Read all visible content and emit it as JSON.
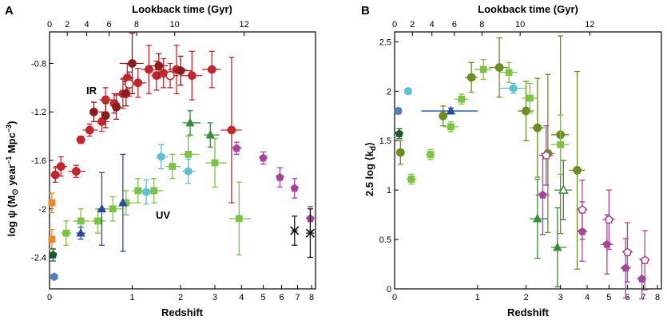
{
  "chart_data": [
    {
      "panel_label": "A",
      "type": "scatter",
      "xlabel": "Redshift",
      "x2label": "Lookback time (Gyr)",
      "ylabel_parts": {
        "pre": "log ψ (M",
        "sub": "⊙",
        "mid": " year",
        "sup1": "−1",
        "post": " Mpc",
        "sup2": "−3",
        "close": ")"
      },
      "xscale": "log(1+z)",
      "xlim": [
        0,
        8.3
      ],
      "ylim": [
        -2.66,
        -0.54
      ],
      "x_ticks": [
        0,
        1,
        2,
        3,
        4,
        5,
        6,
        7,
        8
      ],
      "y_ticks": [
        -2.4,
        -2.0,
        -1.6,
        -1.2,
        -0.8
      ],
      "y_tick_labels": [
        "-2.4",
        "-2",
        "-1.6",
        "-1.2",
        "-0.8"
      ],
      "lookback_ticks": [
        0,
        2,
        4,
        6,
        8,
        10,
        12
      ],
      "annotations": [
        "IR",
        "UV"
      ],
      "series": [
        {
          "name": "IR",
          "color": "#c0282e",
          "marker": "circle",
          "points": [
            [
              0.05,
              -1.72,
              0.04,
              0.04,
              0.06
            ],
            [
              0.1,
              -1.65,
              0.06,
              0.06,
              0.08
            ],
            [
              0.25,
              -1.69,
              0.08,
              0.1,
              0.05
            ],
            [
              0.3,
              -1.43,
              0.05,
              0.05,
              0.03
            ],
            [
              0.4,
              -1.35,
              0.08,
              0.1,
              0.05
            ],
            [
              0.55,
              -1.28,
              0.08,
              0.1,
              0.08
            ],
            [
              0.6,
              -1.1,
              0.08,
              0.1,
              0.1
            ],
            [
              0.72,
              -1.13,
              0.06,
              0.08,
              0.08
            ],
            [
              0.85,
              -1.05,
              0.1,
              0.1,
              0.12
            ],
            [
              0.92,
              -0.92,
              0.1,
              0.1,
              0.12
            ],
            [
              1.1,
              -0.96,
              0.15,
              0.15,
              0.12
            ],
            [
              1.3,
              -0.85,
              0.15,
              0.2,
              0.2
            ],
            [
              1.45,
              -0.9,
              0.1,
              0.15,
              0.12
            ],
            [
              1.6,
              -0.88,
              0.15,
              0.2,
              0.12
            ],
            [
              1.9,
              -0.85,
              0.2,
              0.25,
              0.2
            ],
            [
              2.3,
              -0.9,
              0.3,
              0.3,
              0.2
            ],
            [
              2.9,
              -0.85,
              0.3,
              0.3,
              0.15
            ],
            [
              3.6,
              -1.35,
              0.4,
              0.4,
              0.6
            ]
          ]
        },
        {
          "name": "IR-dark",
          "color": "#8b1d1d",
          "marker": "circle",
          "points": [
            [
              0.45,
              -1.2,
              0.05,
              0.05,
              0.08
            ],
            [
              0.6,
              -1.23,
              0.05,
              0.05,
              0.1
            ],
            [
              0.75,
              -1.16,
              0.05,
              0.08,
              0.1
            ],
            [
              0.9,
              -1.05,
              0.1,
              0.15,
              0.1
            ],
            [
              1.0,
              -0.8,
              0.2,
              0.2,
              0.25
            ],
            [
              1.5,
              -0.82,
              0.2,
              0.2,
              0.1
            ],
            [
              2.0,
              -0.86,
              0.2,
              0.3,
              0.12
            ]
          ]
        },
        {
          "name": "IR-open",
          "color": "#c0282e",
          "marker": "open-circle",
          "points": [
            [
              0.95,
              -0.97,
              0.1,
              0.15,
              0.1
            ],
            [
              1.75,
              -0.9,
              0.2,
              0.2,
              0.1
            ]
          ]
        },
        {
          "name": "UV-light-green",
          "color": "#7dc242",
          "marker": "square",
          "points": [
            [
              0.15,
              -2.2,
              0.05,
              0.05,
              0.1
            ],
            [
              0.3,
              -2.1,
              0.08,
              0.1,
              0.1
            ],
            [
              0.5,
              -2.1,
              0.08,
              0.1,
              0.1
            ],
            [
              0.7,
              -2.0,
              0.1,
              0.15,
              0.1
            ],
            [
              0.9,
              -1.95,
              0.1,
              0.15,
              0.1
            ],
            [
              1.1,
              -1.85,
              0.1,
              0.15,
              0.1
            ],
            [
              1.4,
              -1.85,
              0.15,
              0.2,
              0.1
            ],
            [
              1.8,
              -1.65,
              0.15,
              0.2,
              0.1
            ],
            [
              2.2,
              -1.55,
              0.2,
              0.3,
              0.15
            ],
            [
              3.0,
              -1.62,
              0.3,
              0.4,
              0.2
            ],
            [
              3.9,
              -2.08,
              0.4,
              0.5,
              0.3
            ]
          ]
        },
        {
          "name": "UV-dark-green",
          "color": "#3a8a3a",
          "marker": "triangle",
          "points": [
            [
              2.25,
              -1.29,
              0.2,
              0.3,
              0.1
            ],
            [
              2.85,
              -1.39,
              0.2,
              0.3,
              0.1
            ]
          ]
        },
        {
          "name": "UV-cyan",
          "color": "#5fc0d0",
          "marker": "hexagon",
          "points": [
            [
              1.25,
              -1.86,
              0.15,
              0.2,
              0.1
            ],
            [
              1.55,
              -1.57,
              0.1,
              0.15,
              0.1
            ],
            [
              2.2,
              -1.69,
              0.15,
              0.2,
              0.1
            ]
          ]
        },
        {
          "name": "UV-blue",
          "color": "#2a4aa0",
          "marker": "triangle",
          "points": [
            [
              0.3,
              -2.2,
              0.05,
              0.05,
              0.05
            ],
            [
              0.55,
              -2.0,
              0.05,
              0.05,
              0.3
            ],
            [
              0.85,
              -1.95,
              0.05,
              0.05,
              0.4
            ]
          ]
        },
        {
          "name": "UV-magenta",
          "color": "#a7439a",
          "marker": "pentagon",
          "points": [
            [
              3.8,
              -1.5,
              0.2,
              0.2,
              0.05
            ],
            [
              5.0,
              -1.58,
              0.2,
              0.2,
              0.05
            ],
            [
              5.9,
              -1.74,
              0.2,
              0.2,
              0.08
            ],
            [
              6.8,
              -1.83,
              0.2,
              0.2,
              0.08
            ],
            [
              7.9,
              -2.08,
              0.3,
              0.3,
              0.1
            ]
          ]
        },
        {
          "name": "UV-high-z",
          "color": "#111111",
          "marker": "cross",
          "points": [
            [
              6.8,
              -2.18,
              0.2,
              0.2,
              0.12
            ],
            [
              7.9,
              -2.2,
              0.3,
              0.3,
              0.2
            ]
          ]
        },
        {
          "name": "local",
          "color": "#e68a2e",
          "marker": "square",
          "points": [
            [
              0.02,
              -1.95,
              0.01,
              0.01,
              0.08
            ],
            [
              0.02,
              -2.25,
              0.01,
              0.01,
              0.08
            ]
          ]
        },
        {
          "name": "local-dark",
          "color": "#1e5a2e",
          "marker": "pentagon",
          "points": [
            [
              0.03,
              -2.38,
              0.02,
              0.02,
              0.05
            ]
          ]
        },
        {
          "name": "local-blue",
          "color": "#5a7ac0",
          "marker": "hexagon",
          "points": [
            [
              0.04,
              -2.56,
              0.02,
              0.02,
              0.02
            ]
          ]
        }
      ]
    },
    {
      "panel_label": "B",
      "type": "scatter",
      "xlabel": "Redshift",
      "x2label": "Lookback time (Gyr)",
      "ylabel_parts": {
        "pre": "2.5 log ⟨k",
        "sub": "d",
        "post": "⟩"
      },
      "xscale": "log(1+z)",
      "xlim": [
        0,
        8.3
      ],
      "ylim": [
        0,
        2.6
      ],
      "x_ticks": [
        0,
        1,
        2,
        3,
        4,
        5,
        6,
        7,
        8
      ],
      "y_ticks": [
        0,
        0.5,
        1,
        1.5,
        2,
        2.5
      ],
      "y_tick_labels": [
        "0",
        "0.5",
        "1",
        "1.5",
        "2",
        "2.5"
      ],
      "lookback_ticks": [
        0,
        2,
        4,
        6,
        8,
        10,
        12
      ],
      "series": [
        {
          "name": "olive",
          "color": "#6b8e23",
          "marker": "circle",
          "points": [
            [
              0.05,
              1.38,
              0.03,
              0.03,
              0.12
            ],
            [
              0.5,
              1.75,
              0.05,
              0.05,
              0.1
            ],
            [
              0.9,
              2.14,
              0.1,
              0.1,
              0.15
            ],
            [
              1.4,
              2.24,
              0.2,
              0.2,
              0.3
            ],
            [
              2.0,
              1.8,
              0.2,
              0.2,
              0.3
            ],
            [
              2.3,
              1.63,
              0.2,
              0.2,
              0.5
            ],
            [
              2.6,
              1.37,
              0.2,
              0.2,
              0.8
            ],
            [
              3.0,
              1.56,
              0.3,
              0.3,
              1.0
            ],
            [
              3.6,
              1.2,
              0.3,
              0.3,
              1.0
            ]
          ]
        },
        {
          "name": "light-green",
          "color": "#7dc242",
          "marker": "square",
          "points": [
            [
              0.15,
              1.11,
              0.05,
              0.05,
              0.05
            ],
            [
              0.35,
              1.36,
              0.05,
              0.05,
              0.05
            ],
            [
              0.6,
              1.64,
              0.1,
              0.1,
              0.05
            ],
            [
              0.75,
              1.92,
              0.1,
              0.1,
              0.05
            ],
            [
              1.1,
              2.22,
              0.15,
              0.15,
              0.1
            ],
            [
              1.6,
              2.19,
              0.2,
              0.2,
              0.1
            ],
            [
              2.1,
              1.93,
              0.2,
              0.2,
              0.15
            ],
            [
              3.0,
              1.46,
              0.3,
              0.3,
              0.3
            ]
          ]
        },
        {
          "name": "cyan",
          "color": "#5fc0d0",
          "marker": "hexagon",
          "points": [
            [
              0.12,
              2.0,
              0.03,
              0.03,
              0.03
            ],
            [
              1.7,
              2.03,
              0.3,
              0.3,
              0.05
            ]
          ]
        },
        {
          "name": "blue",
          "color": "#5a7ac0",
          "marker": "hexagon",
          "points": [
            [
              0.03,
              1.8,
              0.02,
              0.02,
              0.03
            ]
          ]
        },
        {
          "name": "blue-tri",
          "color": "#2a4aa0",
          "marker": "triangle",
          "points": [
            [
              0.6,
              1.8,
              0.35,
              0.4,
              0.03
            ]
          ]
        },
        {
          "name": "dark-green",
          "color": "#1e5a2e",
          "marker": "pentagon",
          "points": [
            [
              0.04,
              1.57,
              0.02,
              0.02,
              0.05
            ]
          ]
        },
        {
          "name": "green-tri",
          "color": "#3a8a3a",
          "marker": "triangle",
          "points": [
            [
              2.3,
              0.71,
              0.2,
              0.3,
              0.4
            ],
            [
              2.9,
              0.42,
              0.2,
              0.3,
              0.4
            ]
          ]
        },
        {
          "name": "green-open-tri",
          "color": "#3a8a3a",
          "marker": "open-triangle",
          "points": [
            [
              3.1,
              1.0,
              0.3,
              0.3,
              0.3
            ]
          ]
        },
        {
          "name": "magenta",
          "color": "#a7439a",
          "marker": "pentagon",
          "points": [
            [
              2.45,
              0.95,
              0.2,
              0.2,
              0.4
            ],
            [
              3.8,
              0.58,
              0.2,
              0.2,
              0.3
            ],
            [
              4.9,
              0.45,
              0.3,
              0.3,
              0.3
            ],
            [
              5.9,
              0.21,
              0.3,
              0.3,
              0.3
            ],
            [
              6.9,
              0.1,
              0.3,
              0.3,
              0.2
            ]
          ]
        },
        {
          "name": "magenta-open",
          "color": "#a7439a",
          "marker": "open-pentagon",
          "points": [
            [
              2.55,
              1.35,
              0.2,
              0.2,
              0.3
            ],
            [
              3.8,
              0.8,
              0.2,
              0.2,
              0.3
            ],
            [
              5.0,
              0.7,
              0.3,
              0.3,
              0.3
            ],
            [
              6.0,
              0.37,
              0.3,
              0.3,
              0.3
            ],
            [
              7.1,
              0.29,
              0.3,
              0.3,
              0.3
            ]
          ]
        }
      ]
    }
  ]
}
